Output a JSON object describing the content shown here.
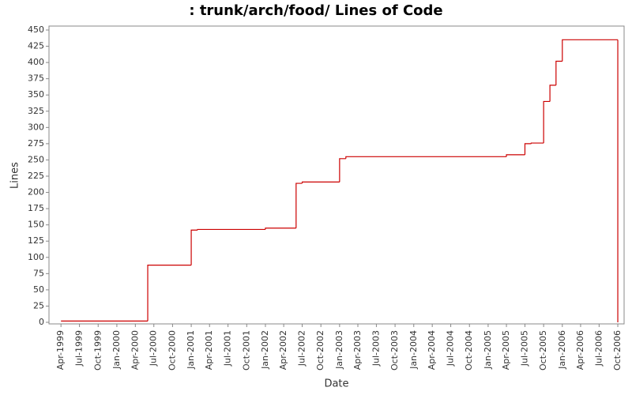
{
  "chart_data": {
    "type": "step",
    "title": ": trunk/arch/food/ Lines of Code",
    "x_label": "Date",
    "y_label": "Lines",
    "series": [
      {
        "name": "Lines",
        "color": "#cc0000",
        "x": [
          "Apr-1999",
          "Jun-2000",
          "Jan-2001",
          "Feb-2001",
          "Jan-2002",
          "Jun-2002",
          "Jul-2002",
          "Jan-2003",
          "Feb-2003",
          "Apr-2005",
          "Jul-2005",
          "Aug-2005",
          "Oct-2005",
          "Nov-2005",
          "Dec-2005",
          "Jan-2006",
          "Oct-2006"
        ],
        "values": [
          2,
          88,
          142,
          143,
          145,
          214,
          216,
          252,
          255,
          258,
          275,
          276,
          340,
          365,
          402,
          435,
          0
        ]
      }
    ],
    "xlim": [
      "Feb-1999",
      "Nov-2006"
    ],
    "xticks": [
      "Apr-1999",
      "Jul-1999",
      "Oct-1999",
      "Jan-2000",
      "Apr-2000",
      "Jul-2000",
      "Oct-2000",
      "Jan-2001",
      "Apr-2001",
      "Jul-2001",
      "Oct-2001",
      "Jan-2002",
      "Apr-2002",
      "Jul-2002",
      "Oct-2002",
      "Jan-2003",
      "Apr-2003",
      "Jul-2003",
      "Oct-2003",
      "Jan-2004",
      "Apr-2004",
      "Jul-2004",
      "Oct-2004",
      "Jan-2005",
      "Apr-2005",
      "Jul-2005",
      "Oct-2005",
      "Jan-2006",
      "Apr-2006",
      "Jul-2006",
      "Oct-2006"
    ],
    "ylim": [
      0,
      450
    ],
    "yticks": [
      0,
      25,
      50,
      75,
      100,
      125,
      150,
      175,
      200,
      225,
      250,
      275,
      300,
      325,
      350,
      375,
      400,
      425,
      450
    ]
  }
}
